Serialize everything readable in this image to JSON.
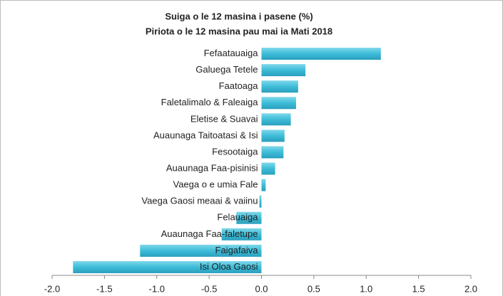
{
  "chart_data": {
    "type": "hbar",
    "title": "Suiga o le 12 masina i pasene (%)",
    "subtitle": "Piriota o le 12 masina pau mai ia Mati 2018",
    "categories": [
      "Fefaatauaiga",
      "Galuega Tetele",
      "Faatoaga",
      "Faletalimalo & Faleaiga",
      "Eletise & Suavai",
      "Auaunaga Taitoatasi & Isi",
      "Fesootaiga",
      "Auaunaga Faa-pisinisi",
      "Vaega o e umia Fale",
      "Vaega Gaosi meaai & vaiinu",
      "Felauaiga",
      "Auaunaga Faa-faletupe",
      "Faigafaiva",
      "Isi Oloa Gaosi"
    ],
    "values": [
      1.14,
      0.42,
      0.35,
      0.33,
      0.28,
      0.22,
      0.21,
      0.13,
      0.04,
      -0.02,
      -0.24,
      -0.38,
      -1.16,
      -1.8
    ],
    "color": "#3dbcd8",
    "xlim": [
      -2.0,
      2.0
    ],
    "xticks": [
      {
        "value": -2.0,
        "label": "-2.0"
      },
      {
        "value": -1.5,
        "label": "-1.5"
      },
      {
        "value": -1.0,
        "label": "-1.0"
      },
      {
        "value": -0.5,
        "label": "-0.5"
      },
      {
        "value": 0,
        "label": "0.0"
      },
      {
        "value": 0.5,
        "label": "0.5"
      },
      {
        "value": 1.0,
        "label": "1.0"
      },
      {
        "value": 1.5,
        "label": "1.5"
      },
      {
        "value": 2.0,
        "label": "2.0"
      }
    ]
  }
}
